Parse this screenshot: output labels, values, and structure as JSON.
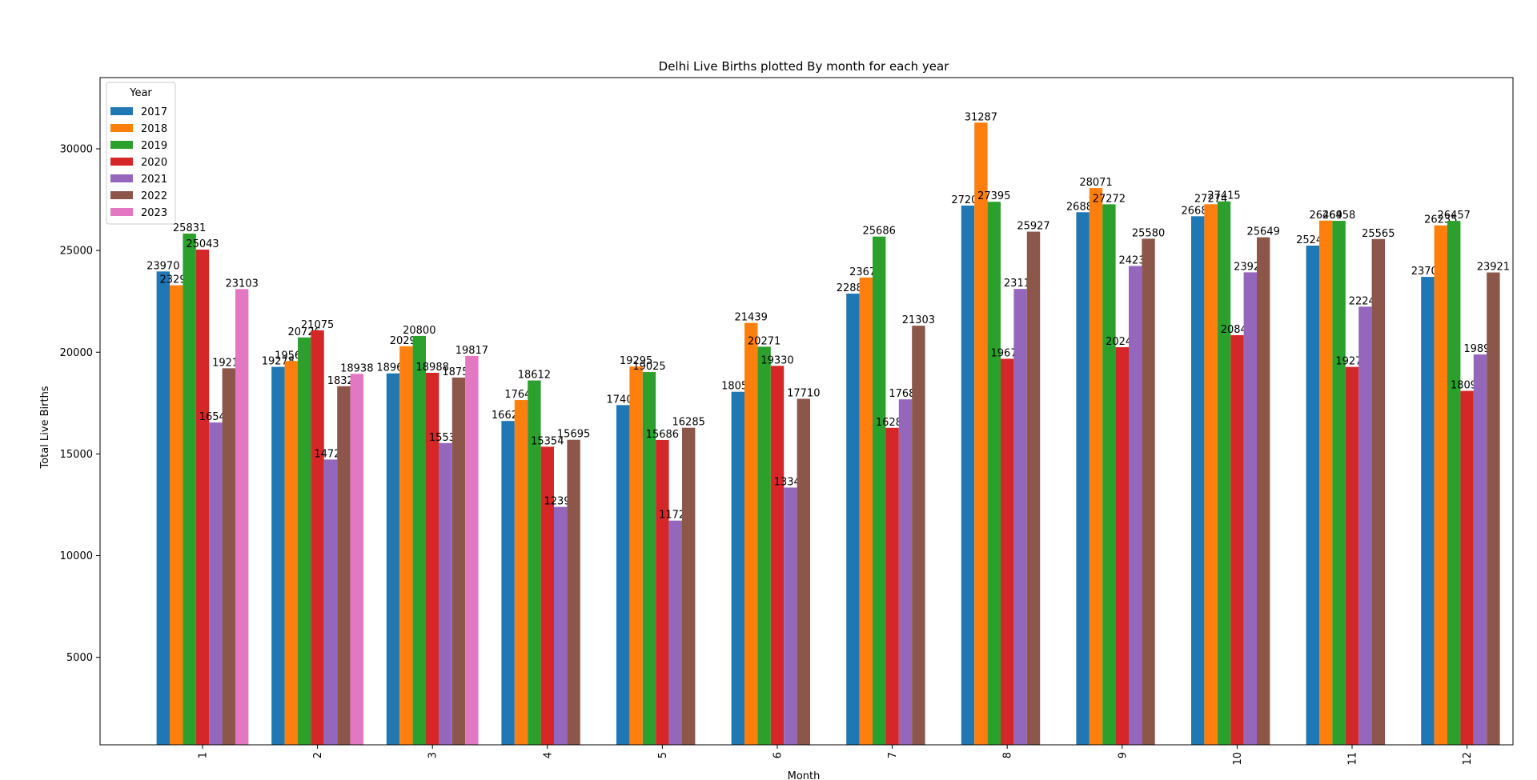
{
  "chart_data": {
    "type": "bar",
    "title": "Delhi Live Births plotted By month for each year",
    "xlabel": "Month",
    "ylabel": "Total Live Births",
    "categories": [
      "1",
      "2",
      "3",
      "4",
      "5",
      "6",
      "7",
      "8",
      "9",
      "10",
      "11",
      "12"
    ],
    "ylim": [
      700,
      33500
    ],
    "yticks": [
      5000,
      10000,
      15000,
      20000,
      25000,
      30000
    ],
    "legend": {
      "title": "Year",
      "placement": "top-left"
    },
    "grid": false,
    "series": [
      {
        "name": "2017",
        "color": "#1f77b4",
        "values": [
          23970,
          19278,
          18960,
          16621,
          17401,
          18055,
          22882,
          27208,
          26881,
          26684,
          25241,
          23704
        ]
      },
      {
        "name": "2018",
        "color": "#ff7f0e",
        "values": [
          23293,
          19566,
          20292,
          17649,
          19295,
          21439,
          23672,
          31287,
          28071,
          27274,
          26469,
          26235
        ]
      },
      {
        "name": "2019",
        "color": "#2ca02c",
        "values": [
          25831,
          20726,
          20800,
          18612,
          19025,
          20271,
          25686,
          27395,
          27272,
          27415,
          26458,
          26457
        ]
      },
      {
        "name": "2020",
        "color": "#d62728",
        "values": [
          25043,
          21075,
          18988,
          15354,
          15686,
          19330,
          16283,
          19678,
          20248,
          20841,
          19278,
          18099
        ]
      },
      {
        "name": "2021",
        "color": "#9467bd",
        "values": [
          16545,
          14725,
          15536,
          12395,
          11723,
          13346,
          17683,
          23111,
          24239,
          23927,
          22240,
          19890
        ]
      },
      {
        "name": "2022",
        "color": "#8c564b",
        "values": [
          19210,
          18328,
          18754,
          15695,
          16285,
          17710,
          21303,
          25927,
          25580,
          25649,
          25565,
          23921
        ]
      },
      {
        "name": "2023",
        "color": "#e377c2",
        "values": [
          23103,
          18938,
          19817,
          null,
          null,
          null,
          null,
          null,
          null,
          null,
          null,
          null
        ]
      }
    ]
  }
}
